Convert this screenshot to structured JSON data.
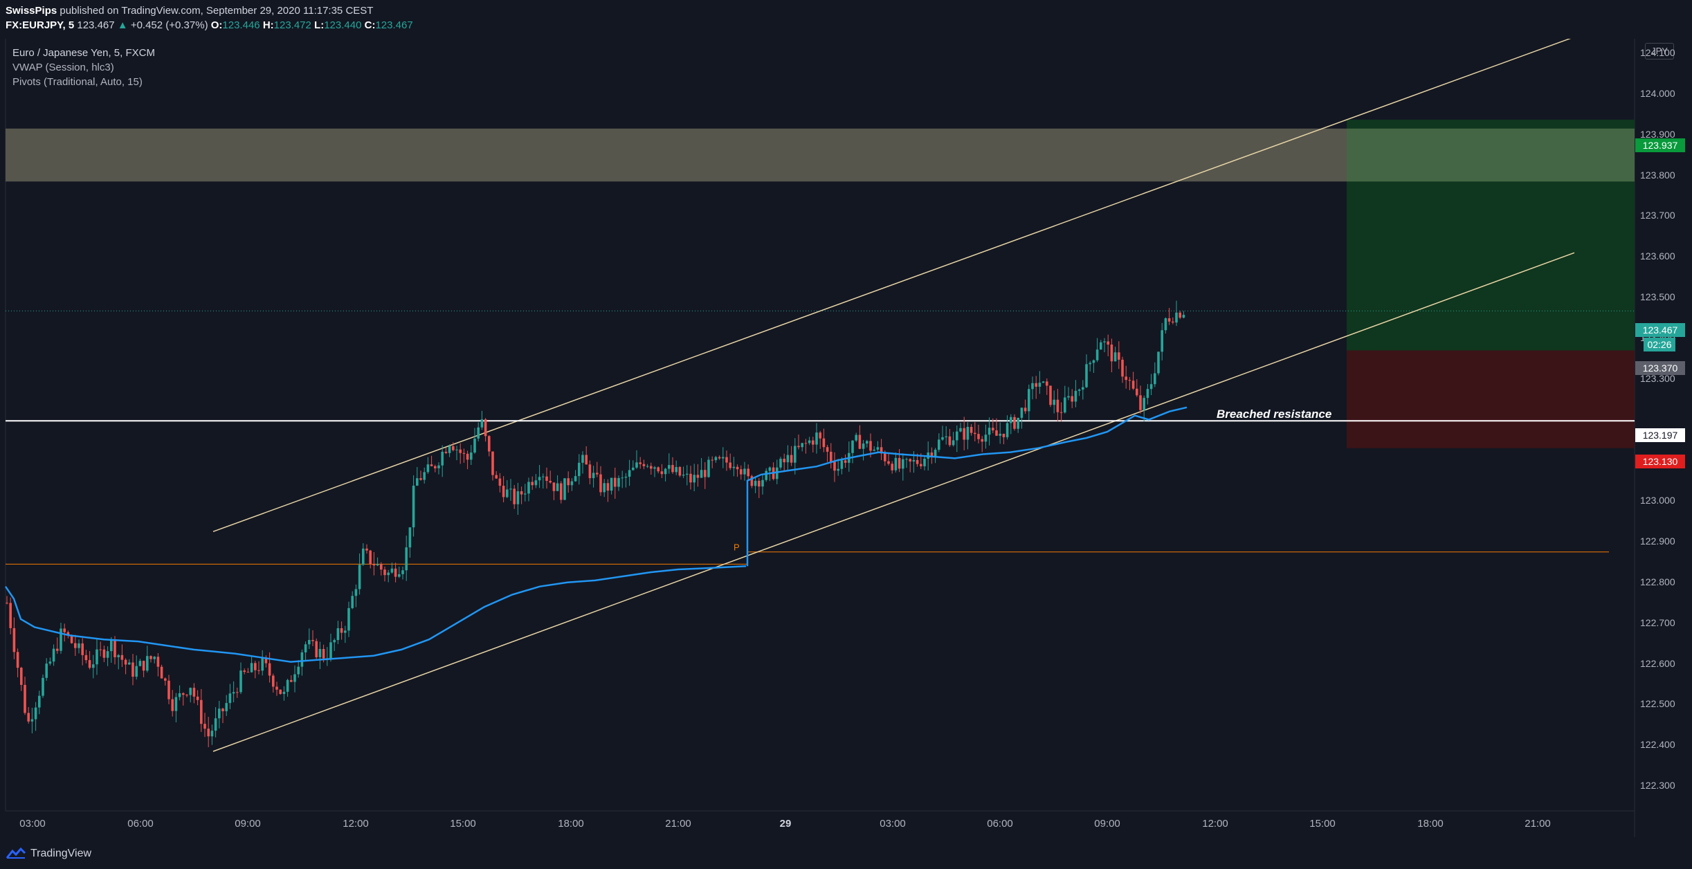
{
  "header": {
    "publisher": "SwissPips",
    "published_text": "published on TradingView.com, September 29, 2020 11:17:35 CEST",
    "symbol": "FX:EURJPY, 5",
    "last": "123.467",
    "change": "+0.452 (+0.37%)",
    "o_label": "O:",
    "o": "123.446",
    "h_label": "H:",
    "h": "123.472",
    "l_label": "L:",
    "l": "123.440",
    "c_label": "C:",
    "c": "123.467"
  },
  "legend": {
    "instrument": "Euro / Japanese Yen, 5, FXCM",
    "vwap": "VWAP (Session, hlc3)",
    "pivots": "Pivots (Traditional, Auto, 15)"
  },
  "currency": "JPY",
  "annotation": "Breached resistance",
  "pivot_label": "P",
  "price_axis_ticks": [
    "124.100",
    "124.000",
    "123.900",
    "123.800",
    "123.700",
    "123.600",
    "123.500",
    "123.400",
    "123.300",
    "123.100",
    "123.000",
    "122.900",
    "122.800",
    "122.700",
    "122.600",
    "122.500",
    "122.400",
    "122.300"
  ],
  "time_axis_ticks": [
    "03:00",
    "06:00",
    "09:00",
    "12:00",
    "15:00",
    "18:00",
    "21:00",
    "29",
    "03:00",
    "06:00",
    "09:00",
    "12:00",
    "15:00",
    "18:00",
    "21:00"
  ],
  "price_tags": {
    "take_profit": "123.937",
    "last_price": "123.467",
    "countdown": "02:26",
    "entry": "123.370",
    "resistance": "123.197",
    "stop_loss": "123.130"
  },
  "colors": {
    "background": "#131722",
    "up": "#26a69a",
    "down": "#ef5350",
    "vwap": "#2196f3",
    "channel": "#e8d5a6",
    "pivot": "#f57c00",
    "resistance": "#ffffff",
    "supply_zone": "#5a5a50",
    "profit_zone": "#103a1e",
    "loss_zone": "#3d1418"
  },
  "footer": {
    "brand": "TradingView"
  }
}
